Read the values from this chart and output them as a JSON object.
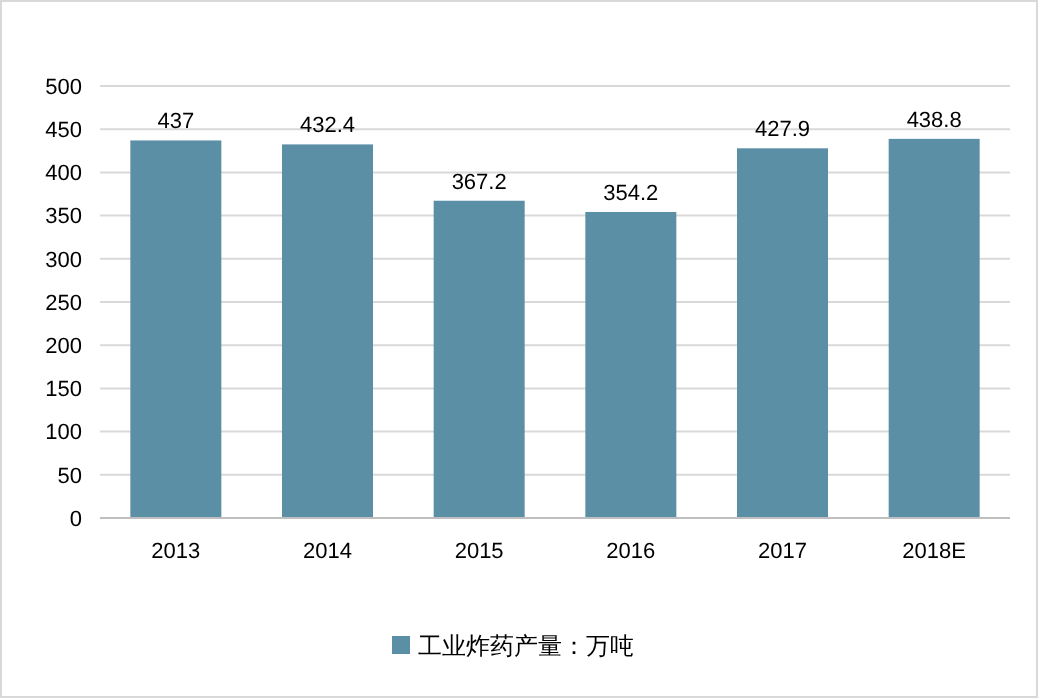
{
  "chart_data": {
    "type": "bar",
    "categories": [
      "2013",
      "2014",
      "2015",
      "2016",
      "2017",
      "2018E"
    ],
    "series": [
      {
        "name": "工业炸药产量：万吨",
        "color": "#5b8fa6",
        "values": [
          437,
          432.4,
          367.2,
          354.2,
          427.9,
          438.8
        ]
      }
    ],
    "ylim": [
      0,
      500
    ],
    "yticks": [
      0,
      50,
      100,
      150,
      200,
      250,
      300,
      350,
      400,
      450,
      500
    ],
    "grid": "y",
    "legend": "bottom",
    "data_labels": true
  }
}
